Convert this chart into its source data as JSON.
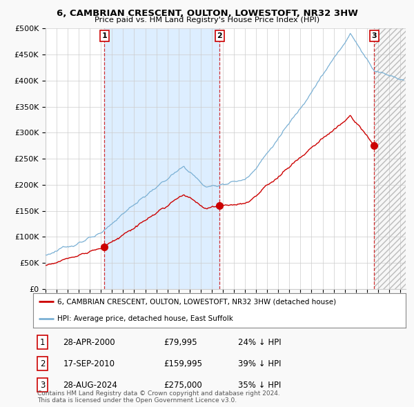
{
  "title": "6, CAMBRIAN CRESCENT, OULTON, LOWESTOFT, NR32 3HW",
  "subtitle": "Price paid vs. HM Land Registry's House Price Index (HPI)",
  "ylabel_ticks": [
    "£0",
    "£50K",
    "£100K",
    "£150K",
    "£200K",
    "£250K",
    "£300K",
    "£350K",
    "£400K",
    "£450K",
    "£500K"
  ],
  "ytick_values": [
    0,
    50000,
    100000,
    150000,
    200000,
    250000,
    300000,
    350000,
    400000,
    450000,
    500000
  ],
  "ylim": [
    0,
    500000
  ],
  "xlim_start": 1995.0,
  "xlim_end": 2027.5,
  "sale_prices": [
    79995,
    159995,
    275000
  ],
  "sale_labels": [
    "1",
    "2",
    "3"
  ],
  "sale_hpi_pct": [
    "24% ↓ HPI",
    "39% ↓ HPI",
    "35% ↓ HPI"
  ],
  "sale_date_strs": [
    "28-APR-2000",
    "17-SEP-2010",
    "28-AUG-2024"
  ],
  "sale_price_strs": [
    "£79,995",
    "£159,995",
    "£275,000"
  ],
  "sale_decimal_years": [
    2000.32,
    2010.72,
    2024.66
  ],
  "property_color": "#cc0000",
  "hpi_color": "#7ab0d4",
  "shade_color": "#ddeeff",
  "legend_property": "6, CAMBRIAN CRESCENT, OULTON, LOWESTOFT, NR32 3HW (detached house)",
  "legend_hpi": "HPI: Average price, detached house, East Suffolk",
  "footnote": "Contains HM Land Registry data © Crown copyright and database right 2024.\nThis data is licensed under the Open Government Licence v3.0.",
  "background_color": "#f9f9f9",
  "plot_bg_color": "#ffffff",
  "grid_color": "#cccccc"
}
